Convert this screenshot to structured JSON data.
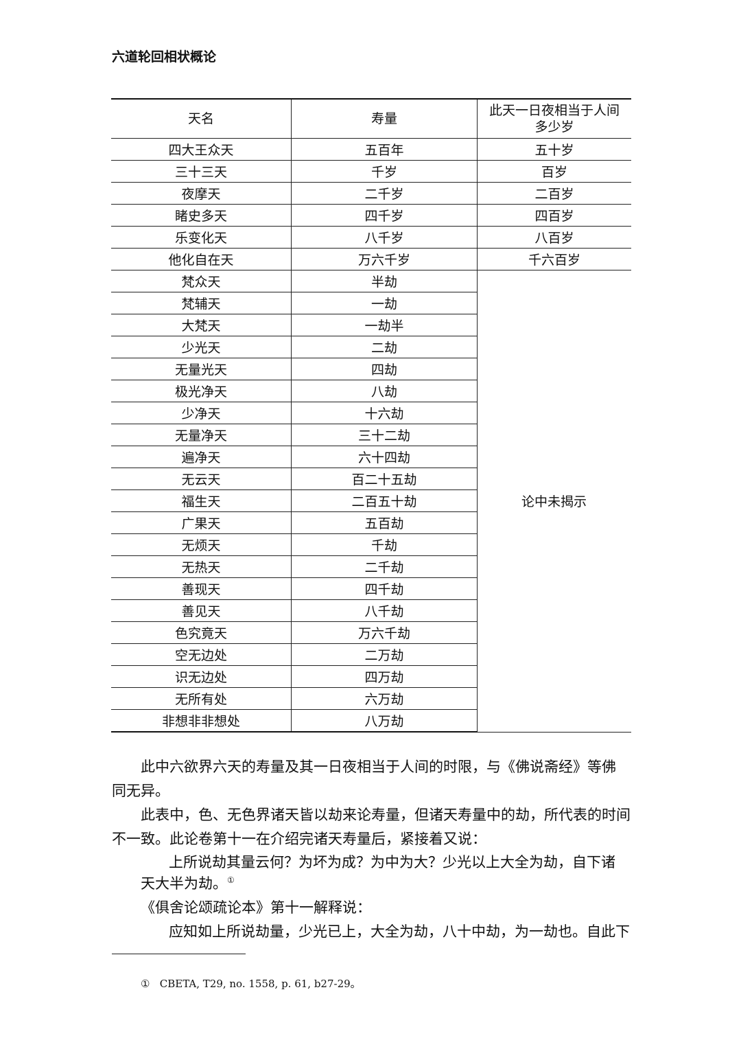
{
  "header": {
    "title": "六道轮回相状概论"
  },
  "table": {
    "headers": [
      "天名",
      "寿量",
      "此天一日夜相当于人间多少岁"
    ],
    "rows": [
      [
        "四大王众天",
        "五百年",
        "五十岁"
      ],
      [
        "三十三天",
        "千岁",
        "百岁"
      ],
      [
        "夜摩天",
        "二千岁",
        "二百岁"
      ],
      [
        "睹史多天",
        "四千岁",
        "四百岁"
      ],
      [
        "乐变化天",
        "八千岁",
        "八百岁"
      ],
      [
        "他化自在天",
        "万六千岁",
        "千六百岁"
      ],
      [
        "梵众天",
        "半劫"
      ],
      [
        "梵辅天",
        "一劫"
      ],
      [
        "大梵天",
        "一劫半"
      ],
      [
        "少光天",
        "二劫"
      ],
      [
        "无量光天",
        "四劫"
      ],
      [
        "极光净天",
        "八劫"
      ],
      [
        "少净天",
        "十六劫"
      ],
      [
        "无量净天",
        "三十二劫"
      ],
      [
        "遍净天",
        "六十四劫"
      ],
      [
        "无云天",
        "百二十五劫"
      ],
      [
        "福生天",
        "二百五十劫"
      ],
      [
        "广果天",
        "五百劫"
      ],
      [
        "无烦天",
        "千劫"
      ],
      [
        "无热天",
        "二千劫"
      ],
      [
        "善现天",
        "四千劫"
      ],
      [
        "善见天",
        "八千劫"
      ],
      [
        "色究竟天",
        "万六千劫"
      ],
      [
        "空无边处",
        "二万劫"
      ],
      [
        "识无边处",
        "四万劫"
      ],
      [
        "无所有处",
        "六万劫"
      ],
      [
        "非想非非想处",
        "八万劫"
      ]
    ],
    "merged_note": "论中未揭示"
  },
  "body": {
    "lines": [
      {
        "style": "para",
        "text": "此中六欲界六天的寿量及其一日夜相当于人间的时限，与《佛说斋经》等佛"
      },
      {
        "style": "cont",
        "text": "同无异。"
      },
      {
        "style": "para",
        "text": "此表中，色、无色界诸天皆以劫来论寿量，但诸天寿量中的劫，所代表的时间"
      },
      {
        "style": "cont",
        "text": "不一致。此论卷第十一在介绍完诸天寿量后，紧接着又说："
      },
      {
        "style": "quote",
        "text": "上所说劫其量云何？为坏为成？为中为大？少光以上大全为劫，自下诸"
      },
      {
        "style": "quote-cont",
        "text": "天大半为劫。"
      },
      {
        "style": "para",
        "text": "《俱舍论颂疏论本》第十一解释说："
      },
      {
        "style": "quote",
        "text": "应知如上所说劫量，少光已上，大全为劫，八十中劫，为一劫也。自此下"
      }
    ],
    "note_ref": "①"
  },
  "footnote": {
    "marker": "①",
    "text": "CBETA, T29, no. 1558, p. 61, b27-29。"
  }
}
